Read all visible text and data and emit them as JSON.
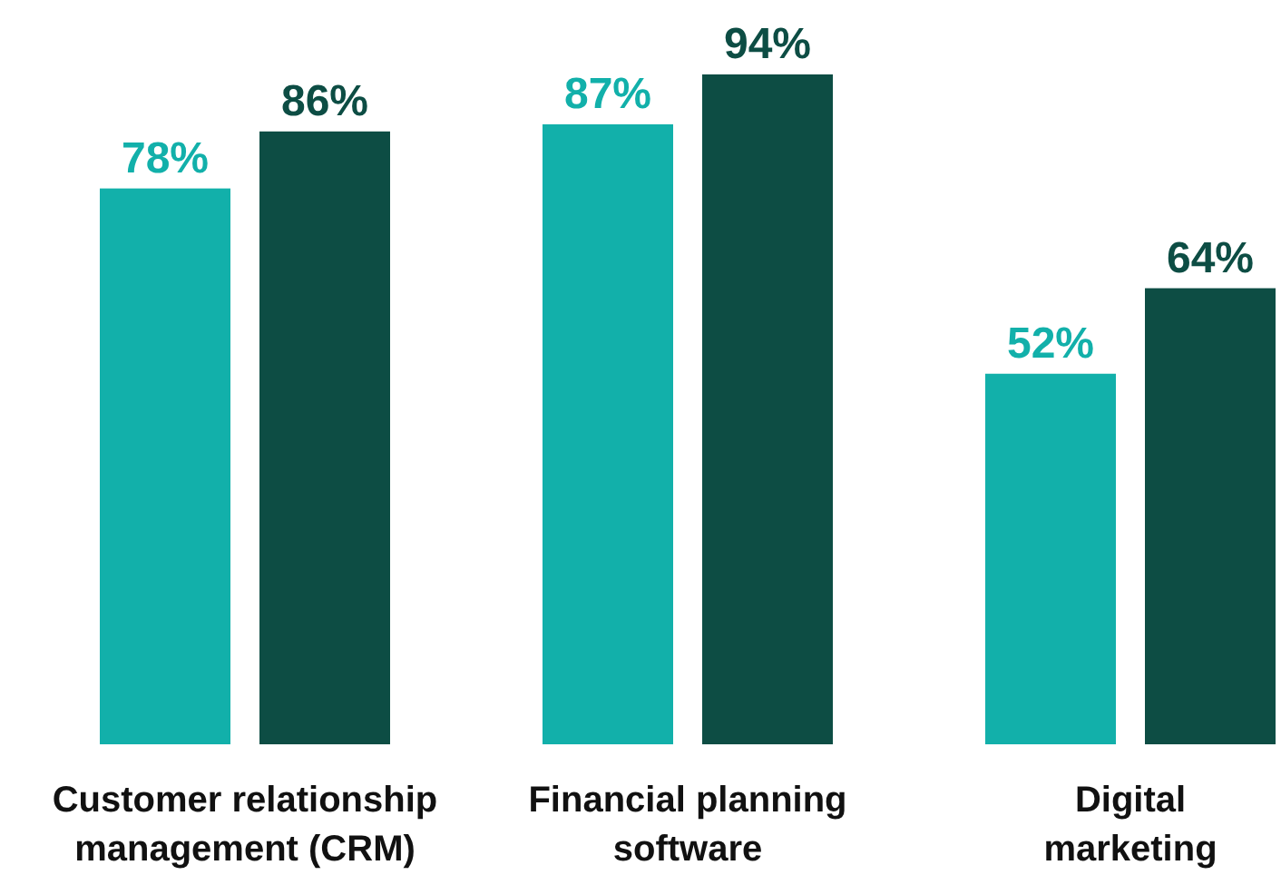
{
  "chart_data": {
    "type": "bar",
    "categories": [
      "Customer relationship management (CRM)",
      "Financial planning software",
      "Digital marketing"
    ],
    "series": [
      {
        "color": "#12b0aa",
        "values": [
          78,
          87,
          52
        ],
        "value_labels": [
          "78%",
          "87%",
          "52%"
        ]
      },
      {
        "color": "#0d4d44",
        "values": [
          86,
          94,
          64
        ],
        "value_labels": [
          "86%",
          "94%",
          "64%"
        ]
      }
    ]
  }
}
